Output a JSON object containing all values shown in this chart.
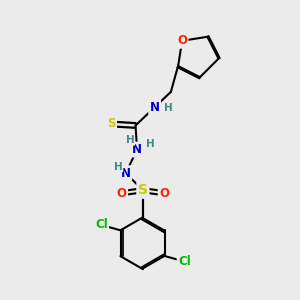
{
  "background_color": "#ebebeb",
  "bond_color": "#000000",
  "atom_colors": {
    "C": "#000000",
    "N": "#0000cc",
    "O": "#ff2200",
    "S_thio": "#cccc00",
    "S_sulfonyl": "#cccc00",
    "Cl": "#00bb00",
    "H": "#448888"
  },
  "font_size": 8.5,
  "fig_size": [
    3.0,
    3.0
  ],
  "dpi": 100
}
